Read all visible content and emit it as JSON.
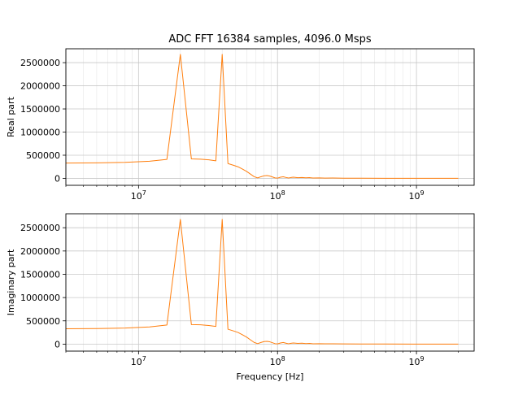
{
  "chart_data": [
    {
      "type": "line",
      "title": "ADC FFT 16384 samples, 4096.0 Msps",
      "xlabel": "",
      "ylabel": "Real part",
      "xscale": "log",
      "xlim": [
        3000000,
        2600000000
      ],
      "ylim": [
        -150000,
        2800000
      ],
      "grid": "major and minor",
      "yticks": [
        0,
        500000,
        1000000,
        1500000,
        2000000,
        2500000
      ],
      "ytick_labels": [
        "0",
        "500000",
        "1000000",
        "1500000",
        "2000000",
        "2500000"
      ],
      "xticks": [
        10000000,
        100000000,
        1000000000
      ],
      "xtick_labels": [
        "10^7",
        "10^8",
        "10^9"
      ],
      "line_color": "#ff7f0e",
      "series": [
        {
          "x": [
            3000000,
            5000000,
            8000000,
            12000000,
            16000000,
            20000000,
            24000000,
            28000000,
            32000000,
            36000000,
            40000000,
            44000000,
            48000000,
            52000000,
            56000000,
            60000000,
            64000000,
            68000000,
            72000000,
            76000000,
            80000000,
            84000000,
            88000000,
            92000000,
            96000000,
            100000000,
            105000000,
            110000000,
            115000000,
            120000000,
            125000000,
            130000000,
            140000000,
            150000000,
            160000000,
            170000000,
            180000000,
            200000000,
            220000000,
            250000000,
            300000000,
            400000000,
            600000000,
            1000000000,
            2000000000
          ],
          "y": [
            330000,
            335000,
            345000,
            370000,
            410000,
            2680000,
            420000,
            415000,
            400000,
            380000,
            2680000,
            320000,
            285000,
            250000,
            200000,
            150000,
            90000,
            35000,
            10000,
            35000,
            55000,
            60000,
            50000,
            30000,
            10000,
            5000,
            25000,
            35000,
            20000,
            8000,
            18000,
            25000,
            15000,
            20000,
            12000,
            16000,
            8000,
            10000,
            6000,
            7000,
            4000,
            3000,
            2000,
            1500,
            1000
          ]
        }
      ]
    },
    {
      "type": "line",
      "title": "",
      "xlabel": "Frequency [Hz]",
      "ylabel": "Imaginary part",
      "xscale": "log",
      "xlim": [
        3000000,
        2600000000
      ],
      "ylim": [
        -150000,
        2800000
      ],
      "grid": "major and minor",
      "yticks": [
        0,
        500000,
        1000000,
        1500000,
        2000000,
        2500000
      ],
      "ytick_labels": [
        "0",
        "500000",
        "1000000",
        "1500000",
        "2000000",
        "2500000"
      ],
      "xticks": [
        10000000,
        100000000,
        1000000000
      ],
      "xtick_labels": [
        "10^7",
        "10^8",
        "10^9"
      ],
      "line_color": "#ff7f0e",
      "series": [
        {
          "x": [
            3000000,
            5000000,
            8000000,
            12000000,
            16000000,
            20000000,
            24000000,
            28000000,
            32000000,
            36000000,
            40000000,
            44000000,
            48000000,
            52000000,
            56000000,
            60000000,
            64000000,
            68000000,
            72000000,
            76000000,
            80000000,
            84000000,
            88000000,
            92000000,
            96000000,
            100000000,
            105000000,
            110000000,
            115000000,
            120000000,
            125000000,
            130000000,
            140000000,
            150000000,
            160000000,
            170000000,
            180000000,
            200000000,
            220000000,
            250000000,
            300000000,
            400000000,
            600000000,
            1000000000,
            2000000000
          ],
          "y": [
            330000,
            335000,
            345000,
            370000,
            410000,
            2680000,
            420000,
            415000,
            400000,
            380000,
            2680000,
            320000,
            285000,
            250000,
            200000,
            150000,
            90000,
            35000,
            10000,
            35000,
            55000,
            60000,
            50000,
            30000,
            10000,
            5000,
            25000,
            35000,
            20000,
            8000,
            18000,
            25000,
            15000,
            20000,
            12000,
            16000,
            8000,
            10000,
            6000,
            7000,
            4000,
            3000,
            2000,
            1500,
            1000
          ]
        }
      ]
    }
  ]
}
